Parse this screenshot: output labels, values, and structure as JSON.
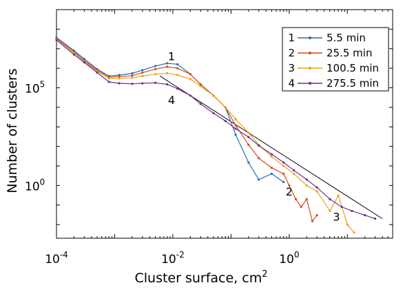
{
  "chart_data": {
    "type": "line",
    "xlabel": "Cluster surface, cm",
    "xlabel_sup": "2",
    "ylabel": "Number of clusters",
    "x_scale": "log",
    "y_scale": "log",
    "xlim": [
      0.0001,
      60
    ],
    "ylim": [
      0.002,
      1000000000
    ],
    "grid": false,
    "legend_position": "top-right",
    "x_ticks": [
      {
        "value": 0.0001,
        "base": "10",
        "exp": "-4"
      },
      {
        "value": 0.01,
        "base": "10",
        "exp": "-2"
      },
      {
        "value": 1,
        "base": "10",
        "exp": "0"
      }
    ],
    "y_ticks": [
      {
        "value": 1,
        "base": "10",
        "exp": "0"
      },
      {
        "value": 100000,
        "base": "10",
        "exp": "5"
      }
    ],
    "series": [
      {
        "name": "5.5 min",
        "number": "1",
        "color": "#1f6fb7",
        "x": [
          0.0001,
          0.0002,
          0.0003,
          0.0005,
          0.0008,
          0.0012,
          0.002,
          0.003,
          0.005,
          0.008,
          0.012,
          0.02,
          0.03,
          0.05,
          0.08,
          0.12,
          0.2,
          0.3,
          0.5,
          0.8
        ],
        "y": [
          38000000,
          8000000,
          3000000,
          900000,
          400000,
          450000,
          550000,
          800000,
          1300000,
          1800000,
          1600000,
          500000,
          150000,
          40000,
          10000,
          400,
          15,
          2,
          4,
          1.5
        ]
      },
      {
        "name": "25.5 min",
        "number": "2",
        "color": "#d24a1c",
        "x": [
          0.0001,
          0.0002,
          0.0003,
          0.0005,
          0.0008,
          0.0012,
          0.002,
          0.003,
          0.005,
          0.008,
          0.012,
          0.02,
          0.03,
          0.05,
          0.08,
          0.12,
          0.2,
          0.3,
          0.5,
          0.8,
          1,
          1.3,
          1.6,
          2,
          2.5,
          3
        ],
        "y": [
          34000000,
          7000000,
          2500000,
          800000,
          350000,
          380000,
          420000,
          600000,
          900000,
          1200000,
          1000000,
          500000,
          150000,
          40000,
          10000,
          1200,
          120,
          25,
          8,
          4,
          1,
          0.2,
          0.08,
          0.2,
          0.015,
          0.03
        ]
      },
      {
        "name": "100.5 min",
        "number": "3",
        "color": "#e8a21c",
        "x": [
          0.0001,
          0.0002,
          0.0003,
          0.0005,
          0.0008,
          0.0012,
          0.002,
          0.003,
          0.005,
          0.008,
          0.012,
          0.02,
          0.03,
          0.05,
          0.08,
          0.12,
          0.2,
          0.3,
          0.5,
          0.8,
          1.2,
          2,
          3,
          5,
          7,
          10,
          13
        ],
        "y": [
          30000000,
          6000000,
          2200000,
          700000,
          300000,
          300000,
          330000,
          400000,
          500000,
          560000,
          450000,
          280000,
          120000,
          40000,
          10000,
          2500,
          500,
          120,
          30,
          10,
          4,
          1,
          0.5,
          0.05,
          0.3,
          0.01,
          0.004
        ]
      },
      {
        "name": "275.5 min",
        "number": "4",
        "color": "#6f2b8f",
        "x": [
          0.0001,
          0.0002,
          0.0003,
          0.0005,
          0.0008,
          0.0012,
          0.002,
          0.003,
          0.005,
          0.008,
          0.012,
          0.02,
          0.03,
          0.05,
          0.08,
          0.12,
          0.2,
          0.3,
          0.5,
          0.8,
          1.2,
          2,
          3,
          5,
          8,
          12,
          20,
          30
        ],
        "y": [
          28000000,
          5000000,
          2000000,
          600000,
          200000,
          170000,
          160000,
          170000,
          180000,
          150000,
          90000,
          40000,
          15000,
          5000,
          2000,
          800,
          300,
          110,
          40,
          15,
          6,
          2,
          0.8,
          0.2,
          0.08,
          0.05,
          0.03,
          0.02
        ]
      }
    ],
    "fit_line": {
      "x": [
        0.006,
        40
      ],
      "y": [
        400000,
        0.02
      ],
      "color": "#000000"
    },
    "annotations": [
      {
        "text": "1",
        "x": 0.0095,
        "y": 2600000
      },
      {
        "text": "2",
        "x": 1.0,
        "y": 0.3
      },
      {
        "text": "3",
        "x": 6.5,
        "y": 0.016
      },
      {
        "text": "4",
        "x": 0.0095,
        "y": 15000
      }
    ]
  }
}
